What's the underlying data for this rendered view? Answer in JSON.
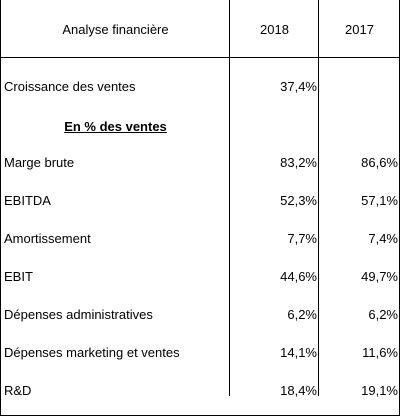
{
  "header": {
    "label": "Analyse financière",
    "col1": "2018",
    "col2": "2017"
  },
  "rows": [
    {
      "label": "Croissance des ventes",
      "v2018": "37,4%",
      "v2017": ""
    },
    {
      "label": "En % des ventes",
      "v2018": "",
      "v2017": ""
    },
    {
      "label": "Marge brute",
      "v2018": "83,2%",
      "v2017": "86,6%"
    },
    {
      "label": "EBITDA",
      "v2018": "52,3%",
      "v2017": "57,1%"
    },
    {
      "label": "Amortissement",
      "v2018": "7,7%",
      "v2017": "7,4%"
    },
    {
      "label": "EBIT",
      "v2018": "44,6%",
      "v2017": "49,7%"
    },
    {
      "label": "Dépenses administratives",
      "v2018": "6,2%",
      "v2017": "6,2%"
    },
    {
      "label": "Dépenses marketing et ventes",
      "v2018": "14,1%",
      "v2017": "11,6%"
    },
    {
      "label": "R&D",
      "v2018": "18,4%",
      "v2017": "19,1%"
    }
  ]
}
